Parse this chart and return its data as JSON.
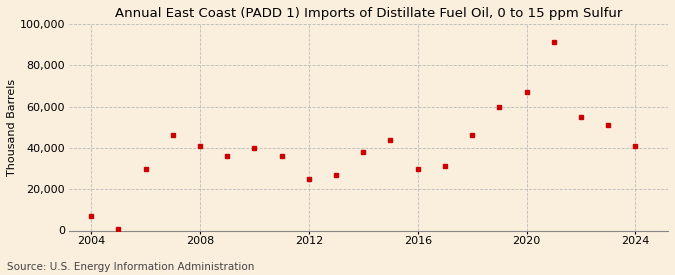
{
  "title": "Annual East Coast (PADD 1) Imports of Distillate Fuel Oil, 0 to 15 ppm Sulfur",
  "ylabel": "Thousand Barrels",
  "source": "Source: U.S. Energy Information Administration",
  "background_color": "#faeedd",
  "plot_bg_color": "#faeedd",
  "marker_color": "#cc0000",
  "years": [
    2004,
    2005,
    2006,
    2007,
    2008,
    2009,
    2010,
    2011,
    2012,
    2013,
    2014,
    2015,
    2016,
    2017,
    2018,
    2019,
    2020,
    2021,
    2022,
    2023,
    2024
  ],
  "values": [
    7000,
    500,
    30000,
    46000,
    41000,
    36000,
    40000,
    36000,
    25000,
    27000,
    38000,
    44000,
    30000,
    31000,
    46000,
    60000,
    67000,
    91000,
    55000,
    51000,
    41000
  ],
  "xlim": [
    2003.2,
    2025.2
  ],
  "ylim": [
    0,
    100000
  ],
  "yticks": [
    0,
    20000,
    40000,
    60000,
    80000,
    100000
  ],
  "xticks": [
    2004,
    2008,
    2012,
    2016,
    2020,
    2024
  ],
  "grid_color": "#bbbbbb",
  "title_fontsize": 9.5,
  "label_fontsize": 8,
  "tick_fontsize": 8,
  "source_fontsize": 7.5
}
